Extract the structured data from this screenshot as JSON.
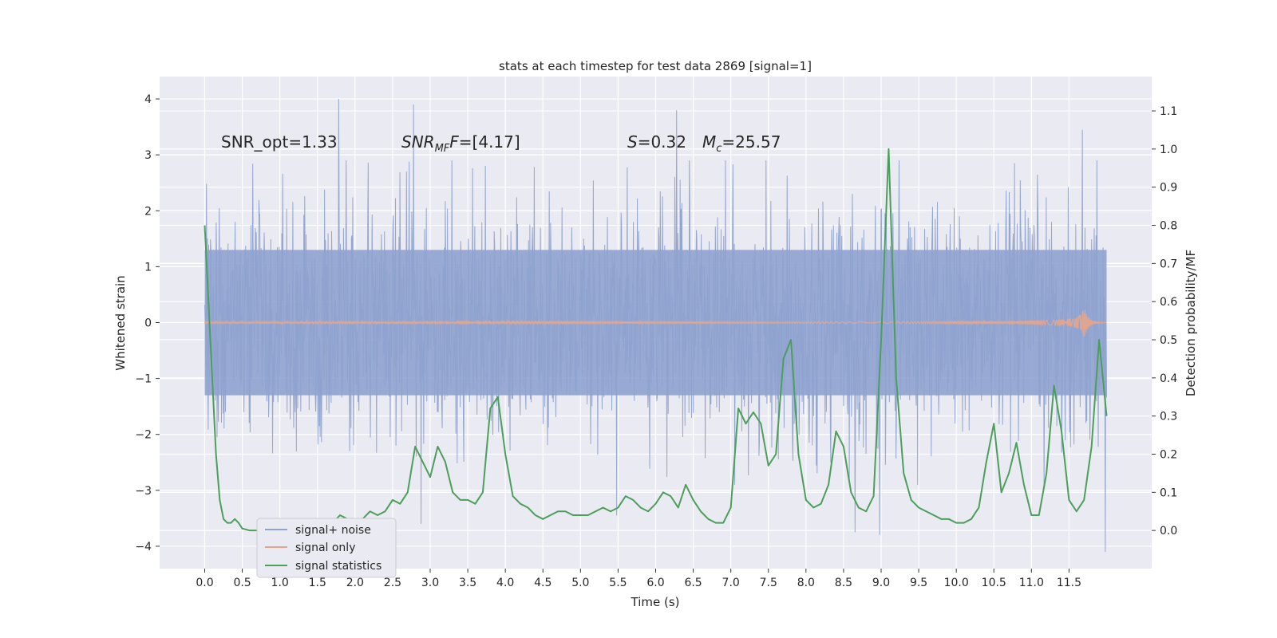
{
  "chart_data": {
    "type": "line",
    "title": "stats at each timestep for test data 2869 [signal=1]",
    "xlabel": "Time (s)",
    "ylabel": "Whitened strain",
    "ylabel_right": "Detection probability/MF",
    "xlim": [
      -0.6,
      12.6
    ],
    "ylim": [
      -4.4,
      4.4
    ],
    "ylim_right": [
      -0.1,
      1.19
    ],
    "x_ticks": [
      "0.0",
      "0.5",
      "1.0",
      "1.5",
      "2.0",
      "2.5",
      "3.0",
      "3.5",
      "4.0",
      "4.5",
      "5.0",
      "5.5",
      "6.0",
      "6.5",
      "7.0",
      "7.5",
      "8.0",
      "8.5",
      "9.0",
      "9.5",
      "10.0",
      "10.5",
      "11.0",
      "11.5"
    ],
    "y_ticks": [
      "4",
      "3",
      "2",
      "1",
      "0",
      "−1",
      "−2",
      "−3",
      "−4"
    ],
    "y_ticks_right": [
      "1.1",
      "1.0",
      "0.9",
      "0.8",
      "0.7",
      "0.6",
      "0.5",
      "0.4",
      "0.3",
      "0.2",
      "0.1",
      "0.0"
    ],
    "grid": true,
    "legend_position": "lower-left",
    "annotations": {
      "snr_opt": "SNR_opt=1.33",
      "snr_mf_main": "SNR",
      "snr_mf_sub": "MF",
      "snr_mf_value": "=[4.17]",
      "s_main": "S",
      "s_value": "=0.32",
      "mc_main": "M",
      "mc_sub": "c",
      "mc_value": "=25.57"
    },
    "series": [
      {
        "name": "signal+ noise",
        "color": "#8fa3cf",
        "x_range": [
          0.0,
          12.0
        ],
        "sample_count": 2048,
        "core_band": [
          -1.3,
          1.3
        ],
        "peak_envelope": [
          2.9,
          -2.9
        ],
        "notable_peaks": [
          {
            "x": 1.78,
            "y": 4.0
          },
          {
            "x": 2.78,
            "y": 3.9
          },
          {
            "x": 6.28,
            "y": 3.8
          },
          {
            "x": 11.68,
            "y": 3.45
          },
          {
            "x": 11.98,
            "y": -4.1
          },
          {
            "x": 8.98,
            "y": -3.8
          },
          {
            "x": 8.65,
            "y": -3.75
          },
          {
            "x": 2.88,
            "y": -3.6
          },
          {
            "x": 5.48,
            "y": -3.45
          }
        ]
      },
      {
        "name": "signal only",
        "color": "#e6a58b",
        "chirp_peak_time": 11.7,
        "chirp_peak_amplitude": 0.3
      },
      {
        "name": "signal statistics",
        "color": "#4c9f5a",
        "x": [
          0.0,
          0.05,
          0.1,
          0.15,
          0.2,
          0.25,
          0.3,
          0.35,
          0.4,
          0.45,
          0.5,
          0.6,
          0.7,
          0.8,
          0.9,
          1.0,
          1.1,
          1.2,
          1.3,
          1.4,
          1.5,
          1.6,
          1.7,
          1.8,
          1.9,
          2.0,
          2.1,
          2.2,
          2.3,
          2.4,
          2.5,
          2.6,
          2.7,
          2.8,
          2.9,
          3.0,
          3.1,
          3.2,
          3.3,
          3.4,
          3.5,
          3.6,
          3.7,
          3.8,
          3.9,
          4.0,
          4.1,
          4.2,
          4.3,
          4.4,
          4.5,
          4.6,
          4.7,
          4.8,
          4.9,
          5.0,
          5.1,
          5.2,
          5.3,
          5.4,
          5.5,
          5.6,
          5.7,
          5.8,
          5.9,
          6.0,
          6.1,
          6.2,
          6.3,
          6.4,
          6.5,
          6.6,
          6.7,
          6.8,
          6.9,
          7.0,
          7.1,
          7.2,
          7.3,
          7.4,
          7.5,
          7.6,
          7.7,
          7.8,
          7.9,
          8.0,
          8.1,
          8.2,
          8.3,
          8.4,
          8.5,
          8.6,
          8.7,
          8.8,
          8.9,
          9.0,
          9.1,
          9.2,
          9.3,
          9.4,
          9.5,
          9.6,
          9.7,
          9.8,
          9.9,
          10.0,
          10.1,
          10.2,
          10.3,
          10.4,
          10.5,
          10.6,
          10.7,
          10.8,
          10.9,
          11.0,
          11.1,
          11.2,
          11.3,
          11.4,
          11.5,
          11.6,
          11.7,
          11.8,
          11.9,
          12.0
        ],
        "y": [
          0.8,
          0.6,
          0.4,
          0.2,
          0.08,
          0.03,
          0.02,
          0.02,
          0.03,
          0.02,
          0.005,
          0.0,
          0.0,
          0.005,
          0.0,
          0.005,
          0.0,
          0.0,
          0.005,
          0.005,
          0.01,
          0.01,
          0.02,
          0.04,
          0.03,
          0.02,
          0.03,
          0.05,
          0.04,
          0.05,
          0.08,
          0.07,
          0.1,
          0.22,
          0.18,
          0.14,
          0.22,
          0.18,
          0.1,
          0.08,
          0.08,
          0.07,
          0.1,
          0.32,
          0.35,
          0.2,
          0.09,
          0.07,
          0.06,
          0.04,
          0.03,
          0.04,
          0.05,
          0.05,
          0.04,
          0.04,
          0.04,
          0.05,
          0.06,
          0.05,
          0.06,
          0.09,
          0.08,
          0.06,
          0.05,
          0.07,
          0.1,
          0.09,
          0.06,
          0.12,
          0.08,
          0.05,
          0.03,
          0.02,
          0.02,
          0.06,
          0.32,
          0.28,
          0.31,
          0.28,
          0.17,
          0.2,
          0.45,
          0.5,
          0.2,
          0.08,
          0.06,
          0.07,
          0.12,
          0.26,
          0.22,
          0.1,
          0.06,
          0.05,
          0.09,
          0.5,
          1.0,
          0.4,
          0.15,
          0.08,
          0.06,
          0.05,
          0.04,
          0.03,
          0.03,
          0.02,
          0.02,
          0.03,
          0.06,
          0.18,
          0.28,
          0.1,
          0.15,
          0.23,
          0.12,
          0.04,
          0.04,
          0.15,
          0.38,
          0.26,
          0.08,
          0.05,
          0.08,
          0.22,
          0.5,
          0.3
        ]
      }
    ]
  }
}
